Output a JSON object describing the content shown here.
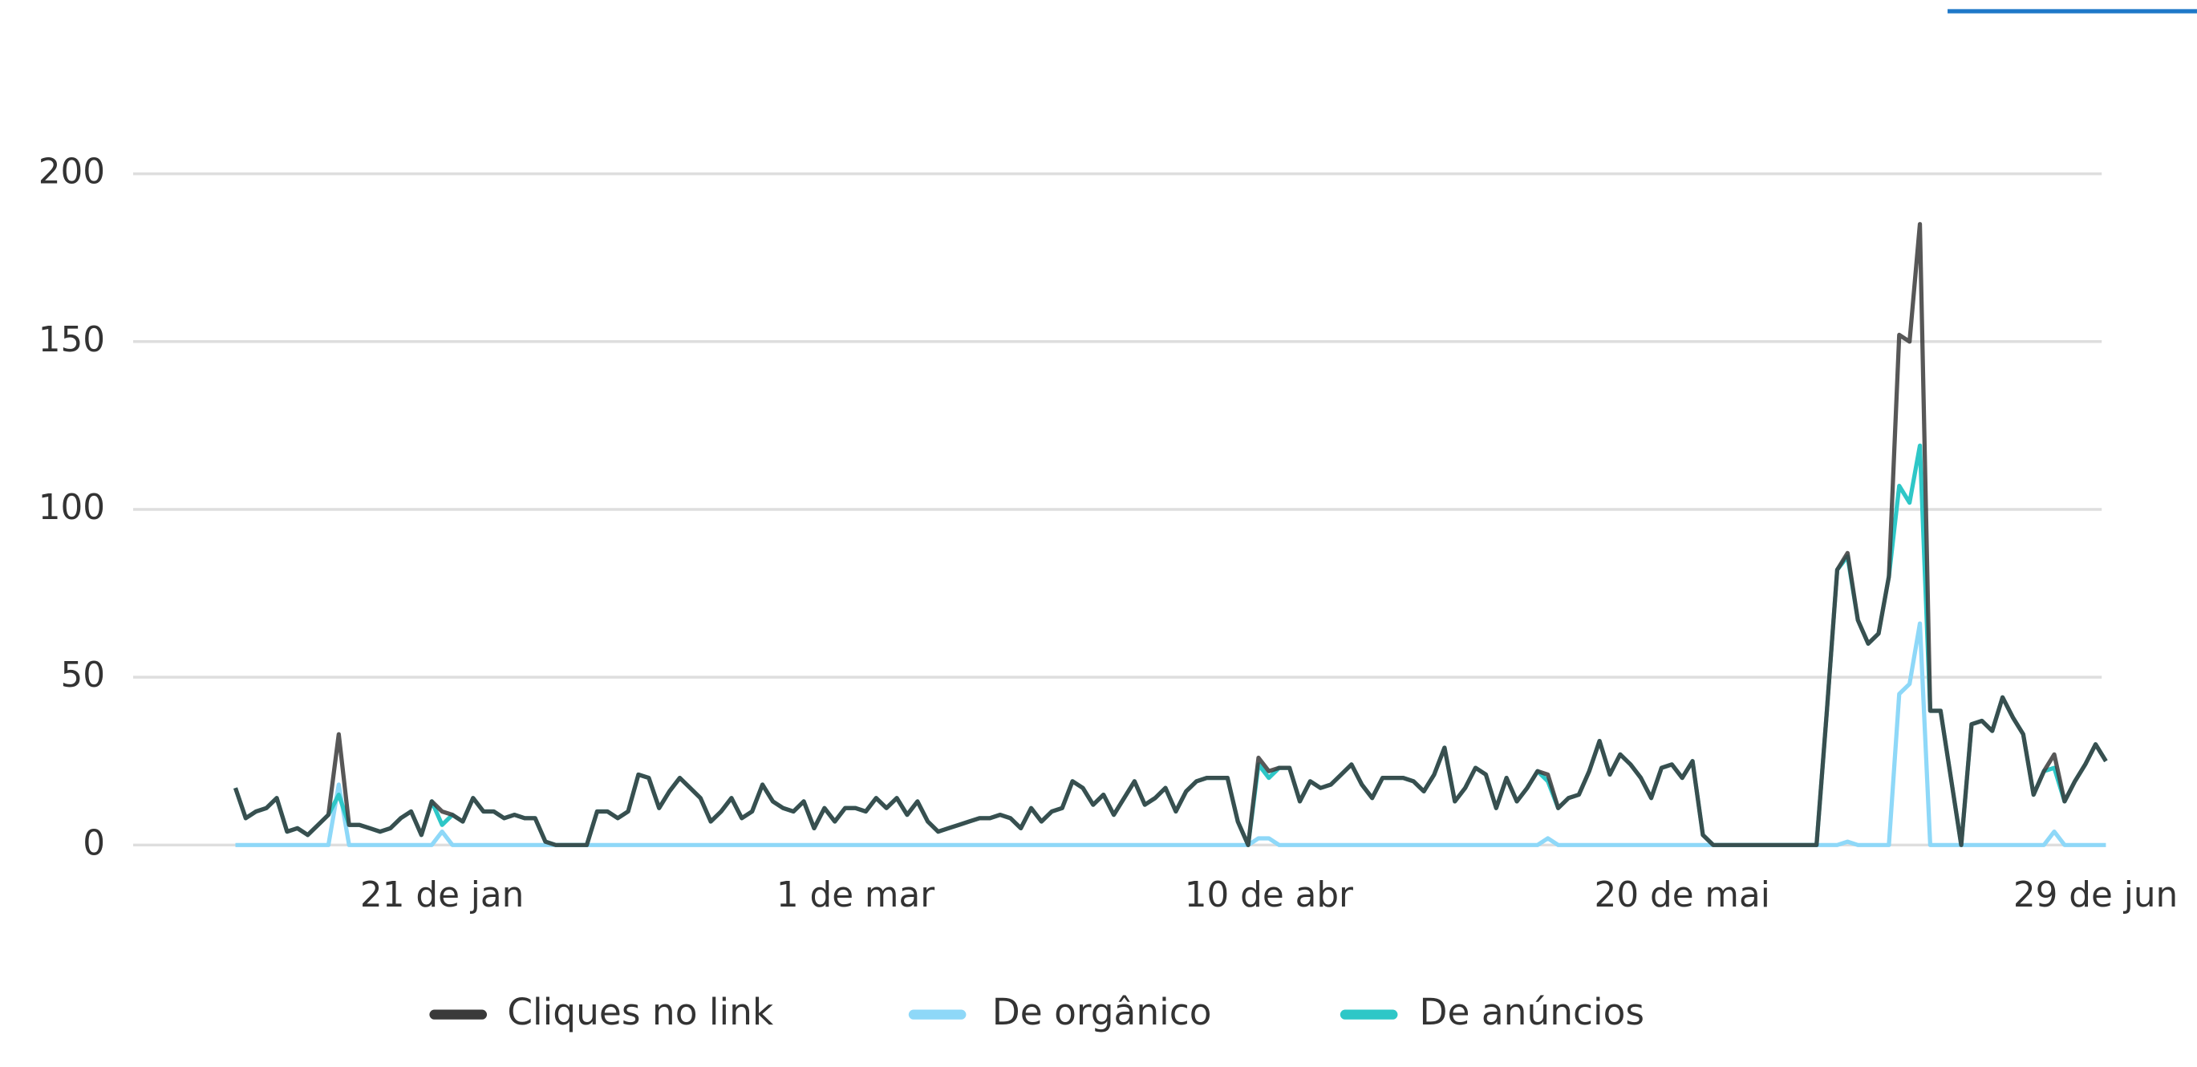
{
  "chart_data": {
    "type": "line",
    "categories": [
      null,
      null,
      null,
      null,
      null,
      null,
      null,
      null,
      null,
      null,
      null,
      null,
      null,
      null,
      null,
      null,
      null,
      null,
      null,
      null,
      "21 de jan",
      null,
      null,
      null,
      null,
      null,
      null,
      null,
      null,
      null,
      null,
      null,
      null,
      null,
      null,
      null,
      null,
      null,
      null,
      null,
      null,
      null,
      null,
      null,
      null,
      null,
      null,
      null,
      null,
      null,
      null,
      null,
      null,
      null,
      null,
      null,
      null,
      null,
      null,
      null,
      "1 de mar",
      null,
      null,
      null,
      null,
      null,
      null,
      null,
      null,
      null,
      null,
      null,
      null,
      null,
      null,
      null,
      null,
      null,
      null,
      null,
      null,
      null,
      null,
      null,
      null,
      null,
      null,
      null,
      null,
      null,
      null,
      null,
      null,
      null,
      null,
      null,
      null,
      null,
      null,
      null,
      "10 de abr",
      null,
      null,
      null,
      null,
      null,
      null,
      null,
      null,
      null,
      null,
      null,
      null,
      null,
      null,
      null,
      null,
      null,
      null,
      null,
      null,
      null,
      null,
      null,
      null,
      null,
      null,
      null,
      null,
      null,
      null,
      null,
      null,
      null,
      null,
      null,
      null,
      null,
      null,
      null,
      "20 de mai",
      null,
      null,
      null,
      null,
      null,
      null,
      null,
      null,
      null,
      null,
      null,
      null,
      null,
      null,
      null,
      null,
      null,
      null,
      null,
      null,
      null,
      null,
      null,
      null,
      null,
      null,
      null,
      null,
      null,
      null,
      null,
      null,
      null,
      null,
      null,
      null,
      null,
      null,
      null,
      "29 de jun",
      null
    ],
    "series": [
      {
        "name": "Cliques no link",
        "color": "#3a3a3a",
        "values": [
          17,
          8,
          10,
          11,
          14,
          4,
          5,
          3,
          6,
          9,
          33,
          6,
          6,
          5,
          4,
          5,
          8,
          10,
          3,
          13,
          10,
          9,
          7,
          14,
          10,
          10,
          8,
          9,
          8,
          8,
          1,
          0,
          0,
          0,
          0,
          10,
          10,
          8,
          10,
          21,
          20,
          11,
          16,
          20,
          17,
          14,
          7,
          10,
          14,
          8,
          10,
          18,
          13,
          11,
          10,
          13,
          5,
          11,
          7,
          11,
          11,
          10,
          14,
          11,
          14,
          9,
          13,
          7,
          4,
          5,
          6,
          7,
          8,
          8,
          9,
          8,
          5,
          11,
          7,
          10,
          11,
          19,
          17,
          12,
          15,
          9,
          14,
          19,
          12,
          14,
          17,
          10,
          16,
          19,
          20,
          20,
          20,
          7,
          0,
          26,
          22,
          23,
          23,
          13,
          19,
          17,
          18,
          21,
          24,
          18,
          14,
          20,
          20,
          20,
          19,
          16,
          21,
          29,
          13,
          17,
          23,
          21,
          11,
          20,
          13,
          17,
          22,
          21,
          11,
          14,
          15,
          22,
          31,
          21,
          27,
          24,
          20,
          14,
          23,
          24,
          20,
          25,
          3,
          0,
          0,
          0,
          0,
          0,
          0,
          0,
          0,
          0,
          0,
          0,
          40,
          82,
          87,
          67,
          60,
          63,
          80,
          152,
          150,
          185,
          40,
          40,
          20,
          0,
          36,
          37,
          34,
          44,
          38,
          33,
          15,
          22,
          27,
          13,
          19,
          24,
          30,
          25
        ]
      },
      {
        "name": "De orgânico",
        "color": "#8ed8f8",
        "values": [
          0,
          0,
          0,
          0,
          0,
          0,
          0,
          0,
          0,
          0,
          18,
          0,
          0,
          0,
          0,
          0,
          0,
          0,
          0,
          0,
          4,
          0,
          0,
          0,
          0,
          0,
          0,
          0,
          0,
          0,
          0,
          0,
          0,
          0,
          0,
          0,
          0,
          0,
          0,
          0,
          0,
          0,
          0,
          0,
          0,
          0,
          0,
          0,
          0,
          0,
          0,
          0,
          0,
          0,
          0,
          0,
          0,
          0,
          0,
          0,
          0,
          0,
          0,
          0,
          0,
          0,
          0,
          0,
          0,
          0,
          0,
          0,
          0,
          0,
          0,
          0,
          0,
          0,
          0,
          0,
          0,
          0,
          0,
          0,
          0,
          0,
          0,
          0,
          0,
          0,
          0,
          0,
          0,
          0,
          0,
          0,
          0,
          0,
          0,
          2,
          2,
          0,
          0,
          0,
          0,
          0,
          0,
          0,
          0,
          0,
          0,
          0,
          0,
          0,
          0,
          0,
          0,
          0,
          0,
          0,
          0,
          0,
          0,
          0,
          0,
          0,
          0,
          2,
          0,
          0,
          0,
          0,
          0,
          0,
          0,
          0,
          0,
          0,
          0,
          0,
          0,
          0,
          0,
          0,
          0,
          0,
          0,
          0,
          0,
          0,
          0,
          0,
          0,
          0,
          0,
          0,
          1,
          0,
          0,
          0,
          0,
          45,
          48,
          66,
          0,
          0,
          0,
          0,
          0,
          0,
          0,
          0,
          0,
          0,
          0,
          0,
          4,
          0,
          0,
          0,
          0,
          0
        ]
      },
      {
        "name": "De anúncios",
        "color": "#2ec7c7",
        "values": [
          17,
          8,
          10,
          11,
          14,
          4,
          5,
          3,
          6,
          9,
          15,
          6,
          6,
          5,
          4,
          5,
          8,
          10,
          3,
          13,
          6,
          9,
          7,
          14,
          10,
          10,
          8,
          9,
          8,
          8,
          1,
          0,
          0,
          0,
          0,
          10,
          10,
          8,
          10,
          21,
          20,
          11,
          16,
          20,
          17,
          14,
          7,
          10,
          14,
          8,
          10,
          18,
          13,
          11,
          10,
          13,
          5,
          11,
          7,
          11,
          11,
          10,
          14,
          11,
          14,
          9,
          13,
          7,
          4,
          5,
          6,
          7,
          8,
          8,
          9,
          8,
          5,
          11,
          7,
          10,
          11,
          19,
          17,
          12,
          15,
          9,
          14,
          19,
          12,
          14,
          17,
          10,
          16,
          19,
          20,
          20,
          20,
          7,
          0,
          24,
          20,
          23,
          23,
          13,
          19,
          17,
          18,
          21,
          24,
          18,
          14,
          20,
          20,
          20,
          19,
          16,
          21,
          29,
          13,
          17,
          23,
          21,
          11,
          20,
          13,
          17,
          22,
          19,
          11,
          14,
          15,
          22,
          31,
          21,
          27,
          24,
          20,
          14,
          23,
          24,
          20,
          25,
          3,
          0,
          0,
          0,
          0,
          0,
          0,
          0,
          0,
          0,
          0,
          0,
          40,
          82,
          86,
          67,
          60,
          63,
          80,
          107,
          102,
          119,
          40,
          40,
          20,
          0,
          36,
          37,
          34,
          44,
          38,
          33,
          15,
          22,
          23,
          13,
          19,
          24,
          30,
          25
        ]
      }
    ],
    "ylim": [
      0,
      200
    ],
    "yticks": [
      0,
      50,
      100,
      150,
      200
    ],
    "grid": true
  }
}
